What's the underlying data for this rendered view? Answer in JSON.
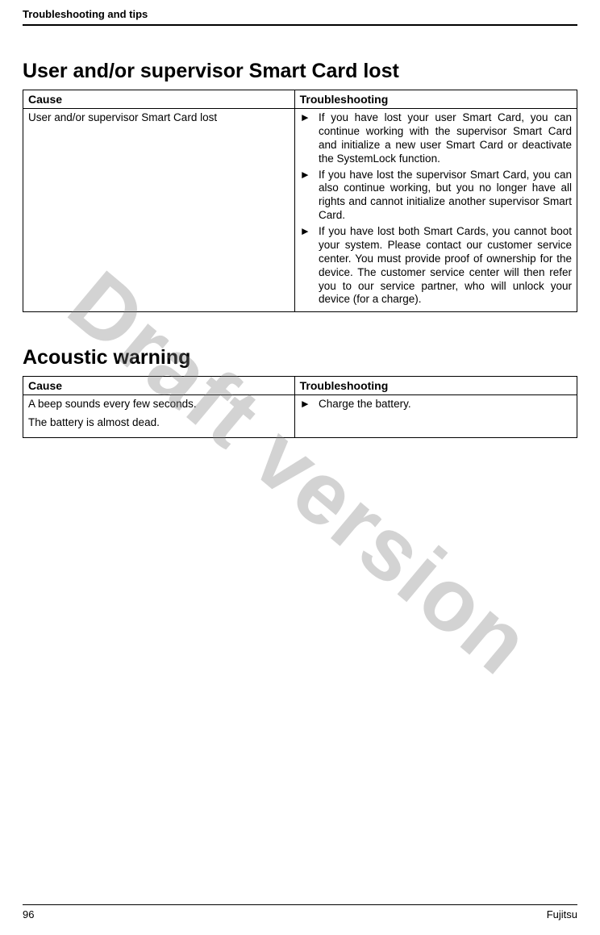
{
  "header": {
    "title": "Troubleshooting and tips"
  },
  "watermark": "Draft version",
  "section1": {
    "title": "User and/or supervisor Smart Card lost",
    "col_cause": "Cause",
    "col_trouble": "Troubleshooting",
    "cause": "User and/or supervisor Smart Card lost",
    "items": [
      "If you have lost your user Smart Card, you can continue working with the supervisor Smart Card and initialize a new user Smart Card or deactivate the SystemLock function.",
      "If you have lost the supervisor Smart Card, you can also continue working, but you no longer have all rights and cannot initialize another supervisor Smart Card.",
      "If you have lost both Smart Cards, you cannot boot your system. Please contact our customer service center. You must provide proof of ownership for the device. The customer service center will then refer you to our service partner, who will unlock your device (for a charge)."
    ]
  },
  "section2": {
    "title": "Acoustic warning",
    "col_cause": "Cause",
    "col_trouble": "Troubleshooting",
    "cause_line1": "A beep sounds every few seconds.",
    "cause_line2": "The battery is almost dead.",
    "items": [
      "Charge the battery."
    ]
  },
  "footer": {
    "page": "96",
    "brand": "Fujitsu"
  }
}
